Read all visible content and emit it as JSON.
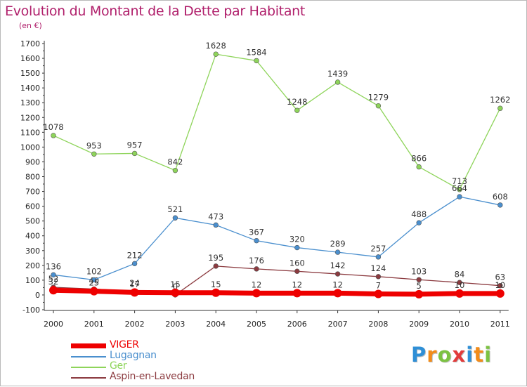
{
  "chart_data": {
    "type": "line",
    "title": "Evolution du Montant de la Dette par Habitant",
    "subtitle": "(en €)",
    "categories": [
      "2000",
      "2001",
      "2002",
      "2003",
      "2004",
      "2005",
      "2006",
      "2007",
      "2008",
      "2009",
      "2010",
      "2011"
    ],
    "ylim": [
      -100,
      1700
    ],
    "yticks": [
      -100,
      0,
      100,
      200,
      300,
      400,
      500,
      600,
      700,
      800,
      900,
      1000,
      1100,
      1200,
      1300,
      1400,
      1500,
      1600,
      1700
    ],
    "grid": false,
    "legend_position": "bottom-left",
    "series": [
      {
        "name": "Aspin-en-Lavedan",
        "color": "#8b3a3f",
        "values": [
          52,
          40,
          24,
          0,
          195,
          176,
          160,
          142,
          124,
          103,
          84,
          63
        ]
      },
      {
        "name": "Ger",
        "color": "#8ed45a",
        "values": [
          1078,
          953,
          957,
          842,
          1628,
          1584,
          1248,
          1439,
          1279,
          866,
          713,
          1262
        ]
      },
      {
        "name": "Lugagnan",
        "color": "#4a8fce",
        "values": [
          136,
          102,
          212,
          521,
          473,
          367,
          320,
          289,
          257,
          488,
          664,
          608
        ]
      },
      {
        "name": "VIGER",
        "color": "#ee0000",
        "values": [
          32,
          25,
          17,
          15,
          15,
          12,
          12,
          12,
          7,
          5,
          10,
          10
        ]
      }
    ]
  },
  "legend": {
    "items": [
      {
        "label": "VIGER",
        "color": "#ee0000"
      },
      {
        "label": "Lugagnan",
        "color": "#4a8fce"
      },
      {
        "label": "Ger",
        "color": "#8ed45a"
      },
      {
        "label": "Aspin-en-Lavedan",
        "color": "#8b3a3f"
      }
    ]
  },
  "logo": {
    "letters": [
      "P",
      "r",
      "o",
      "x",
      "i",
      "t",
      "i"
    ]
  }
}
